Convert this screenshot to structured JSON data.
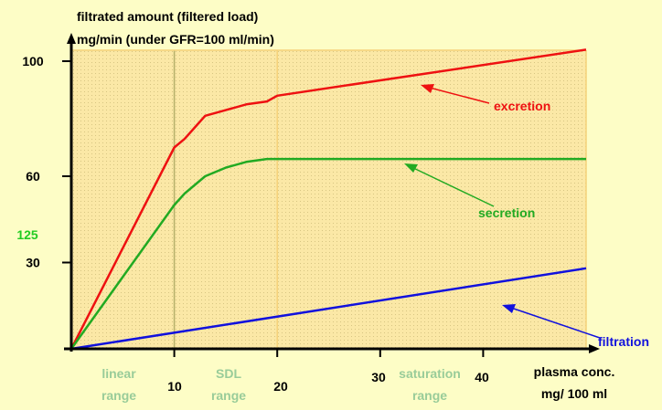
{
  "colors": {
    "background": "#fdfdc6",
    "plot_area": "#fbe8a6",
    "axis": "#000000",
    "excretion": "#ee1111",
    "secretion": "#22aa22",
    "filtration": "#1111dd",
    "range_label": "#99cc99",
    "highlight_tick": "#22cc22",
    "range_border": "#f5d27a"
  },
  "chart_data": {
    "type": "line",
    "title": "filtrated amount (filtered load)",
    "subtitle": "mg/min (under GFR=100 ml/min)",
    "xlabel_line1": "plasma conc.",
    "xlabel_line2": "mg/ 100 ml",
    "xlim": [
      0,
      50
    ],
    "ylim": [
      0,
      110
    ],
    "x_ticks": [
      10,
      20,
      30,
      40
    ],
    "y_ticks": [
      30,
      60,
      100
    ],
    "y_extra_label": "125",
    "regions": [
      {
        "label_line1": "linear",
        "label_line2": "range",
        "from": 0,
        "to": 10
      },
      {
        "label_line1": "SDL",
        "label_line2": "range",
        "from": 10,
        "to": 20
      },
      {
        "label_line1": "saturation",
        "label_line2": "range",
        "from": 20,
        "to": 50
      }
    ],
    "series": [
      {
        "name": "excretion",
        "color": "#ee1111",
        "x": [
          0,
          10,
          11,
          12,
          13,
          15,
          17,
          19,
          20,
          50
        ],
        "y": [
          0,
          70,
          73,
          77,
          81,
          83,
          85,
          86,
          88,
          104
        ]
      },
      {
        "name": "secretion",
        "color": "#22aa22",
        "x": [
          0,
          10,
          11,
          12,
          13,
          15,
          17,
          19,
          20,
          50
        ],
        "y": [
          0,
          50,
          54,
          57,
          60,
          63,
          65,
          66,
          66,
          66
        ]
      },
      {
        "name": "filtration",
        "color": "#1111dd",
        "x": [
          0,
          50
        ],
        "y": [
          0,
          28
        ]
      }
    ]
  }
}
